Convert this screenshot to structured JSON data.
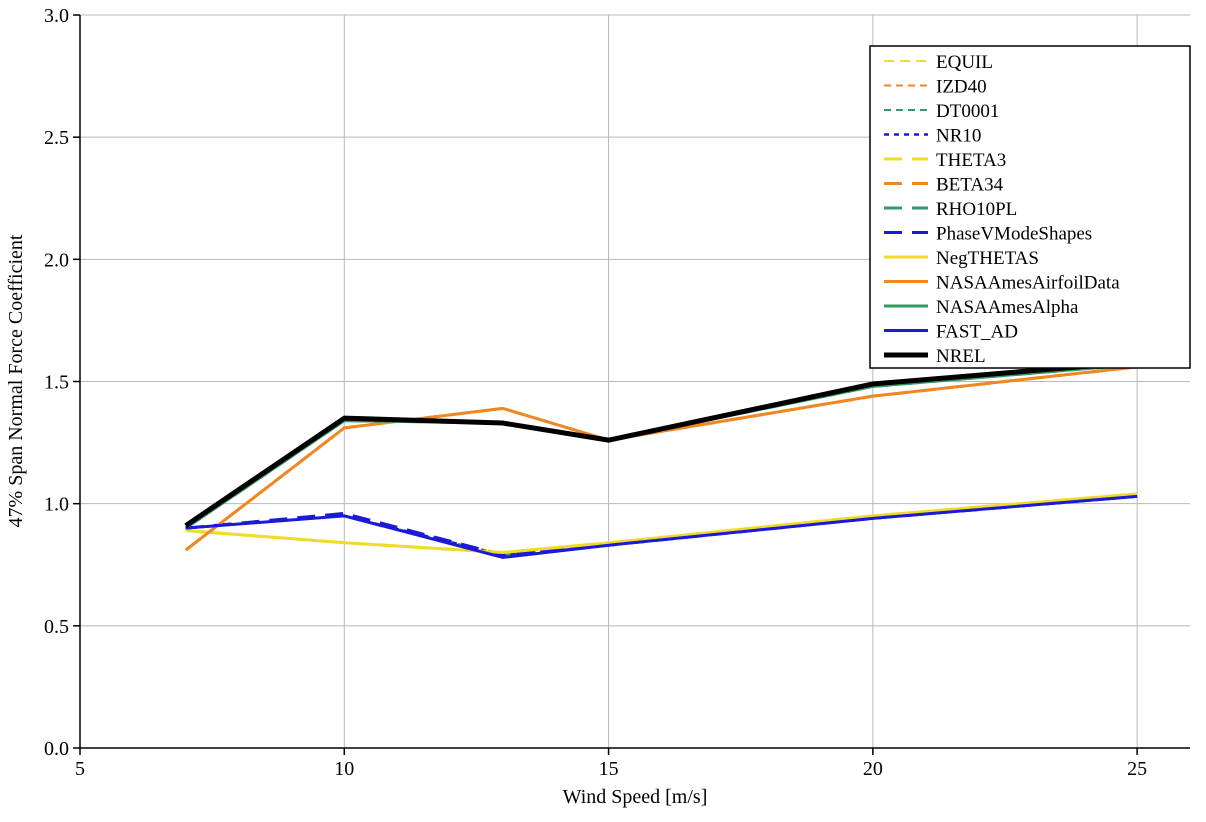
{
  "chart_data": {
    "type": "line",
    "title": "",
    "xlabel": "Wind Speed [m/s]",
    "ylabel": "47% Span Normal Force Coefficient",
    "xlim": [
      5,
      26
    ],
    "ylim": [
      0.0,
      3.0
    ],
    "xticks": [
      5,
      10,
      15,
      20,
      25
    ],
    "xtick_labels": [
      "5",
      "10",
      "15",
      "20",
      "25"
    ],
    "yticks": [
      0.0,
      0.5,
      1.0,
      1.5,
      2.0,
      2.5,
      3.0
    ],
    "ytick_labels": [
      "0.0",
      "0.5",
      "1.0",
      "1.5",
      "2.0",
      "2.5",
      "3.0"
    ],
    "grid": true,
    "grid_color": "#b8b8b8",
    "axis_color": "#000000",
    "legend_position": "top-right",
    "x": [
      7,
      10,
      13,
      15,
      20,
      25
    ],
    "series": [
      {
        "name": "EQUIL",
        "color": "#f0dc28",
        "dash": "10 6",
        "width": 2,
        "values": [
          0.89,
          0.84,
          0.8,
          0.84,
          0.95,
          1.04
        ]
      },
      {
        "name": "IZD40",
        "color": "#ef8822",
        "dash": "7 5",
        "width": 2,
        "values": [
          0.9,
          0.95,
          0.79,
          0.83,
          0.94,
          1.03
        ]
      },
      {
        "name": "DT0001",
        "color": "#339966",
        "dash": "7 5",
        "width": 2,
        "values": [
          0.9,
          0.95,
          0.79,
          0.83,
          0.94,
          1.03
        ]
      },
      {
        "name": "NR10",
        "color": "#1a1ad8",
        "dash": "5 5",
        "width": 2.5,
        "values": [
          0.9,
          0.95,
          0.79,
          0.83,
          0.94,
          1.03
        ]
      },
      {
        "name": "THETA3",
        "color": "#f0dc28",
        "dash": "18 10",
        "width": 3,
        "values": [
          0.89,
          0.84,
          0.8,
          0.84,
          0.95,
          1.04
        ]
      },
      {
        "name": "BETA34",
        "color": "#ef8822",
        "dash": "18 10",
        "width": 3,
        "values": [
          0.81,
          1.31,
          1.39,
          1.26,
          1.44,
          1.56
        ]
      },
      {
        "name": "RHO10PL",
        "color": "#339966",
        "dash": "18 10",
        "width": 3,
        "values": [
          0.9,
          1.34,
          1.33,
          1.26,
          1.48,
          1.57
        ]
      },
      {
        "name": "PhaseVModeShapes",
        "color": "#1a1ad8",
        "dash": "18 10",
        "width": 3,
        "values": [
          0.9,
          0.96,
          0.79,
          0.83,
          0.94,
          1.03
        ]
      },
      {
        "name": "NegTHETAS",
        "color": "#f0dc28",
        "dash": "",
        "width": 3,
        "values": [
          0.89,
          0.84,
          0.8,
          0.84,
          0.95,
          1.04
        ]
      },
      {
        "name": "NASAAmesAirfoilData",
        "color": "#ef8822",
        "dash": "",
        "width": 3,
        "values": [
          0.81,
          1.31,
          1.39,
          1.26,
          1.44,
          1.56
        ]
      },
      {
        "name": "NASAAmesAlpha",
        "color": "#339966",
        "dash": "",
        "width": 3,
        "values": [
          0.9,
          1.34,
          1.33,
          1.26,
          1.48,
          1.57
        ]
      },
      {
        "name": "FAST_AD",
        "color": "#1a1ad8",
        "dash": "",
        "width": 3,
        "values": [
          0.9,
          0.95,
          0.78,
          0.83,
          0.94,
          1.03
        ]
      },
      {
        "name": "NREL",
        "color": "#000000",
        "dash": "",
        "width": 5,
        "values": [
          0.91,
          1.35,
          1.33,
          1.26,
          1.49,
          1.58
        ]
      }
    ]
  }
}
